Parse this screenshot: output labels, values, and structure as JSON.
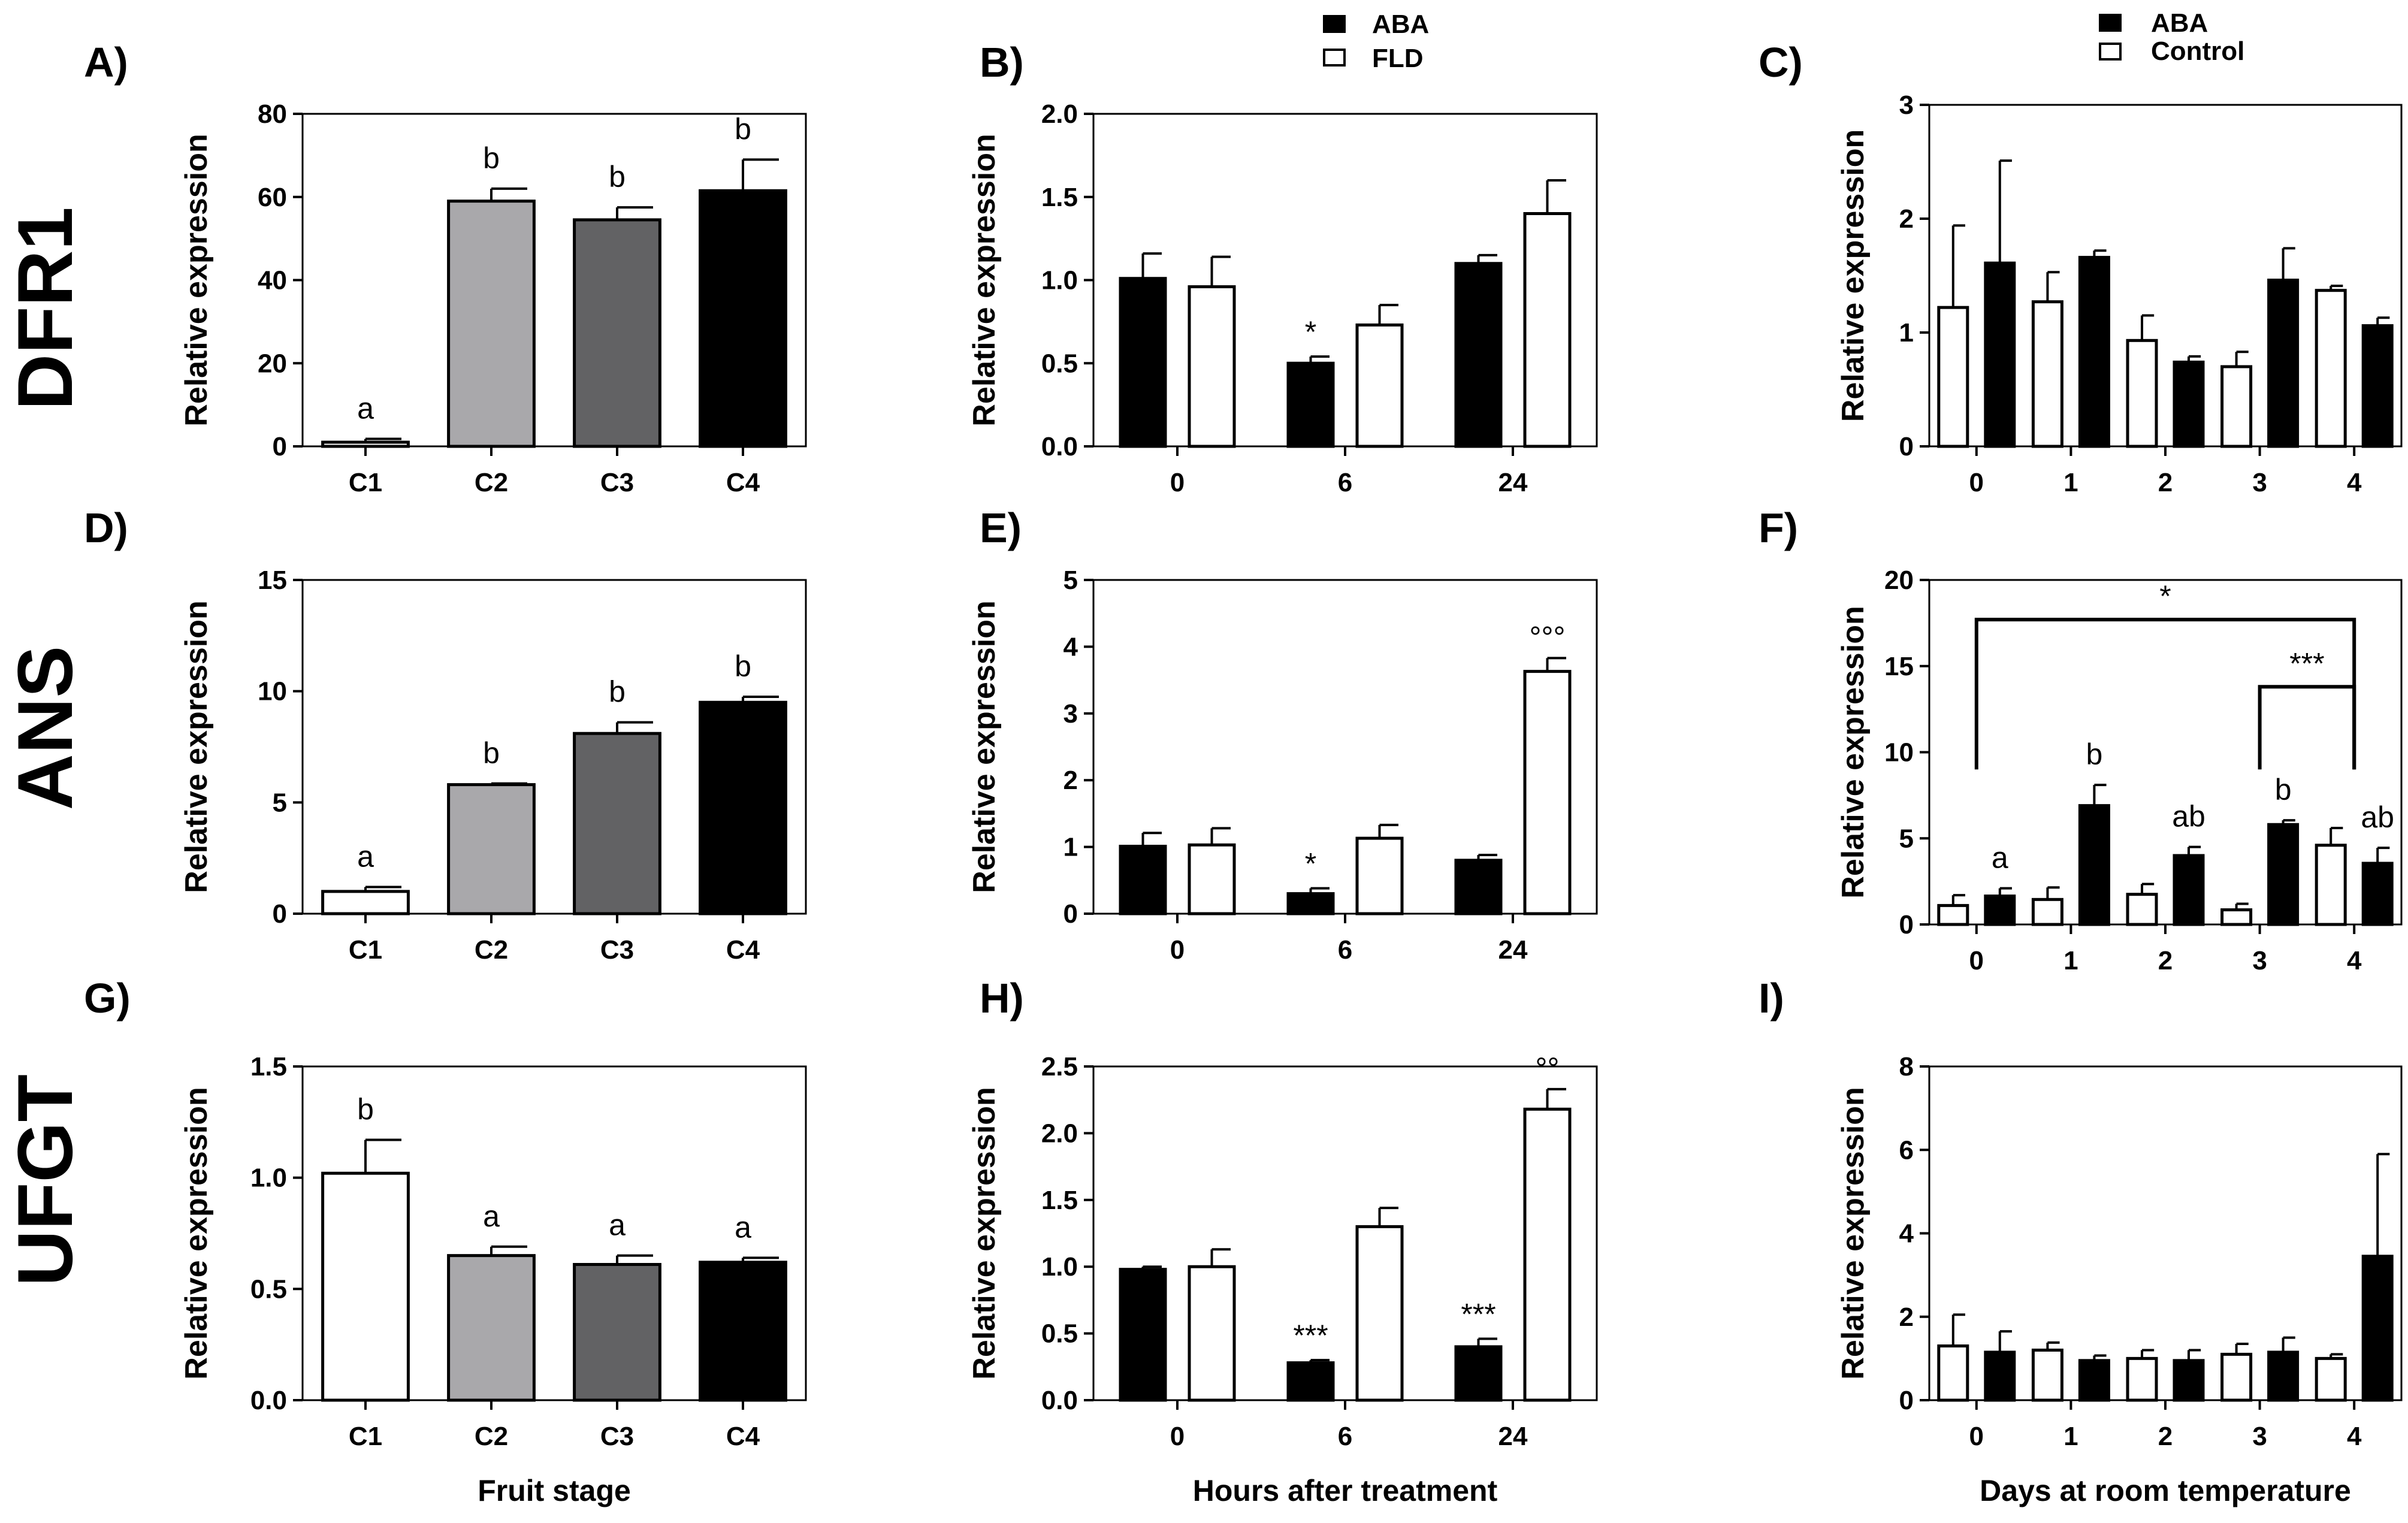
{
  "colors": {
    "c1": "#ffffff",
    "c2": "#a9a8ab",
    "c3": "#626264",
    "c4": "#000000",
    "black": "#000000",
    "white": "#ffffff"
  },
  "genes": [
    "DFR1",
    "ANS",
    "UFGT"
  ],
  "legends": {
    "hours": {
      "items": [
        {
          "label": "ABA",
          "fill": "#000000"
        },
        {
          "label": "FLD",
          "fill": "#ffffff"
        }
      ]
    },
    "days": {
      "items": [
        {
          "label": "ABA",
          "fill": "#000000"
        },
        {
          "label": "Control",
          "fill": "#ffffff"
        }
      ]
    }
  },
  "x_titles": {
    "stage": "Fruit stage",
    "hours": "Hours after treatment",
    "days": "Days at room temperature"
  },
  "chart_data": [
    {
      "id": "A",
      "panel_label": "A)",
      "type": "bar",
      "ylabel": "Relative expression",
      "xlabel": "",
      "ylim": [
        0,
        80
      ],
      "yticks": [
        "0",
        "20",
        "40",
        "60",
        "80"
      ],
      "categories": [
        "C1",
        "C2",
        "C3",
        "C4"
      ],
      "series": [
        {
          "name": "Fruit stage",
          "values": [
            1,
            59,
            54.5,
            61.5
          ],
          "errors": [
            0.8,
            3,
            3,
            7.5
          ],
          "fills": [
            "#ffffff",
            "#a9a8ab",
            "#626264",
            "#000000"
          ],
          "labels": [
            "a",
            "b",
            "b",
            "b"
          ]
        }
      ]
    },
    {
      "id": "B",
      "panel_label": "B)",
      "type": "bar",
      "ylabel": "Relative expression",
      "xlabel": "",
      "ylim": [
        0,
        2.0
      ],
      "yticks": [
        "0.0",
        "0.5",
        "1.0",
        "1.5",
        "2.0"
      ],
      "categories": [
        "0",
        "6",
        "24"
      ],
      "series": [
        {
          "name": "ABA",
          "values": [
            1.01,
            0.5,
            1.1
          ],
          "errors": [
            0.15,
            0.04,
            0.05
          ],
          "fills": [
            "#000000"
          ],
          "labels": [
            "",
            "*",
            ""
          ]
        },
        {
          "name": "FLD",
          "values": [
            0.96,
            0.73,
            1.4
          ],
          "errors": [
            0.18,
            0.12,
            0.2
          ],
          "fills": [
            "#ffffff"
          ],
          "labels": [
            "",
            "",
            ""
          ]
        }
      ]
    },
    {
      "id": "C",
      "panel_label": "C)",
      "type": "bar",
      "ylabel": "Relative expression",
      "xlabel": "",
      "ylim": [
        0,
        3
      ],
      "yticks": [
        "0",
        "1",
        "2",
        "3"
      ],
      "categories": [
        "0",
        "1",
        "2",
        "3",
        "4"
      ],
      "series": [
        {
          "name": "Control",
          "values": [
            1.22,
            1.27,
            0.93,
            0.7,
            1.37
          ],
          "errors": [
            0.72,
            0.26,
            0.22,
            0.13,
            0.04
          ],
          "fills": [
            "#ffffff"
          ],
          "labels": [
            "",
            "",
            "",
            "",
            ""
          ]
        },
        {
          "name": "ABA",
          "values": [
            1.61,
            1.66,
            0.74,
            1.46,
            1.06
          ],
          "errors": [
            0.9,
            0.06,
            0.05,
            0.28,
            0.07
          ],
          "fills": [
            "#000000"
          ],
          "labels": [
            "",
            "",
            "",
            "",
            ""
          ]
        }
      ]
    },
    {
      "id": "D",
      "panel_label": "D)",
      "type": "bar",
      "ylabel": "Relative expression",
      "xlabel": "",
      "ylim": [
        0,
        15
      ],
      "yticks": [
        "0",
        "5",
        "10",
        "15"
      ],
      "categories": [
        "C1",
        "C2",
        "C3",
        "C4"
      ],
      "series": [
        {
          "name": "Fruit stage",
          "values": [
            1,
            5.8,
            8.1,
            9.5
          ],
          "errors": [
            0.2,
            0.05,
            0.5,
            0.25
          ],
          "fills": [
            "#ffffff",
            "#a9a8ab",
            "#626264",
            "#000000"
          ],
          "labels": [
            "a",
            "b",
            "b",
            "b"
          ]
        }
      ]
    },
    {
      "id": "E",
      "panel_label": "E)",
      "type": "bar",
      "ylabel": "Relative expression",
      "xlabel": "",
      "ylim": [
        0,
        5
      ],
      "yticks": [
        "0",
        "1",
        "2",
        "3",
        "4",
        "5"
      ],
      "categories": [
        "0",
        "6",
        "24"
      ],
      "series": [
        {
          "name": "ABA",
          "values": [
            1.01,
            0.3,
            0.8
          ],
          "errors": [
            0.2,
            0.08,
            0.08
          ],
          "fills": [
            "#000000"
          ],
          "labels": [
            "",
            "*",
            ""
          ]
        },
        {
          "name": "FLD",
          "values": [
            1.03,
            1.13,
            3.63
          ],
          "errors": [
            0.25,
            0.2,
            0.2
          ],
          "fills": [
            "#ffffff"
          ],
          "labels": [
            "",
            "",
            "°°°"
          ]
        }
      ]
    },
    {
      "id": "F",
      "panel_label": "F)",
      "type": "bar",
      "ylabel": "Relative expression",
      "xlabel": "",
      "ylim": [
        0,
        20
      ],
      "yticks": [
        "0",
        "5",
        "10",
        "15",
        "20"
      ],
      "categories": [
        "0",
        "1",
        "2",
        "3",
        "4"
      ],
      "series": [
        {
          "name": "Control",
          "values": [
            1.1,
            1.45,
            1.75,
            0.85,
            4.6
          ],
          "errors": [
            0.6,
            0.7,
            0.6,
            0.35,
            1.0
          ],
          "fills": [
            "#ffffff"
          ],
          "labels": [
            "",
            "",
            "",
            "",
            ""
          ]
        },
        {
          "name": "ABA",
          "values": [
            1.65,
            6.9,
            4.0,
            5.8,
            3.55
          ],
          "errors": [
            0.45,
            1.2,
            0.5,
            0.25,
            0.9
          ],
          "fills": [
            "#000000"
          ],
          "labels": [
            "a",
            "b",
            "ab",
            "b",
            "ab"
          ]
        }
      ],
      "brackets": [
        {
          "from": "0",
          "to": "4",
          "y": 17.7,
          "label": "*"
        },
        {
          "from": "3",
          "to": "4",
          "y": 13.8,
          "label": "***"
        }
      ]
    },
    {
      "id": "G",
      "panel_label": "G)",
      "type": "bar",
      "ylabel": "Relative expression",
      "xlabel": "Fruit stage",
      "ylim": [
        0,
        1.5
      ],
      "yticks": [
        "0.0",
        "0.5",
        "1.0",
        "1.5"
      ],
      "categories": [
        "C1",
        "C2",
        "C3",
        "C4"
      ],
      "series": [
        {
          "name": "Fruit stage",
          "values": [
            1.02,
            0.65,
            0.61,
            0.62
          ],
          "errors": [
            0.15,
            0.04,
            0.04,
            0.02
          ],
          "fills": [
            "#ffffff",
            "#a9a8ab",
            "#626264",
            "#000000"
          ],
          "labels": [
            "b",
            "a",
            "a",
            "a"
          ]
        }
      ]
    },
    {
      "id": "H",
      "panel_label": "H)",
      "type": "bar",
      "ylabel": "Relative expression",
      "xlabel": "Hours after treatment",
      "ylim": [
        0,
        2.5
      ],
      "yticks": [
        "0.0",
        "0.5",
        "1.0",
        "1.5",
        "2.0",
        "2.5"
      ],
      "categories": [
        "0",
        "6",
        "24"
      ],
      "series": [
        {
          "name": "ABA",
          "values": [
            0.98,
            0.28,
            0.4
          ],
          "errors": [
            0.02,
            0.02,
            0.06
          ],
          "fills": [
            "#000000"
          ],
          "labels": [
            "",
            "***",
            "***"
          ]
        },
        {
          "name": "FLD",
          "values": [
            1.0,
            1.3,
            2.18
          ],
          "errors": [
            0.13,
            0.14,
            0.15
          ],
          "fills": [
            "#ffffff"
          ],
          "labels": [
            "",
            "",
            "°°"
          ]
        }
      ]
    },
    {
      "id": "I",
      "panel_label": "I)",
      "type": "bar",
      "ylabel": "Relative expression",
      "xlabel": "Days at room temperature",
      "ylim": [
        0,
        8
      ],
      "yticks": [
        "0",
        "2",
        "4",
        "6",
        "8"
      ],
      "categories": [
        "0",
        "1",
        "2",
        "3",
        "4"
      ],
      "series": [
        {
          "name": "Control",
          "values": [
            1.3,
            1.2,
            1.0,
            1.1,
            1.0
          ],
          "errors": [
            0.75,
            0.18,
            0.2,
            0.25,
            0.1
          ],
          "fills": [
            "#ffffff"
          ],
          "labels": [
            "",
            "",
            "",
            "",
            ""
          ]
        },
        {
          "name": "ABA",
          "values": [
            1.15,
            0.95,
            0.95,
            1.15,
            3.45
          ],
          "errors": [
            0.5,
            0.12,
            0.25,
            0.35,
            2.45
          ],
          "fills": [
            "#000000"
          ],
          "labels": [
            "",
            "",
            "",
            "",
            ""
          ]
        }
      ]
    }
  ]
}
